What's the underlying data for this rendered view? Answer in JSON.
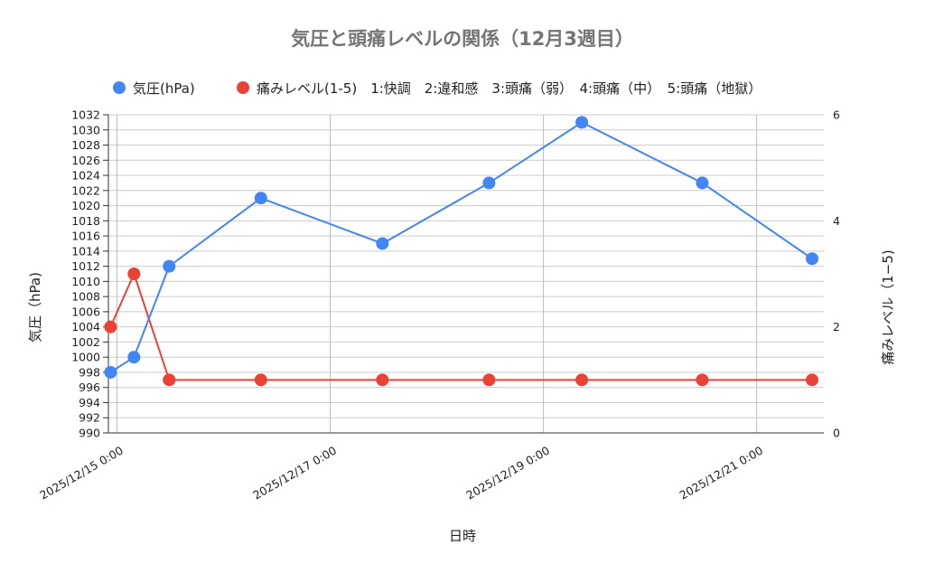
{
  "chart_data": {
    "type": "line",
    "title": "気圧と頭痛レベルの関係（12月3週目）",
    "xlabel": "日時",
    "ylabel_left": "気圧（hPa)",
    "ylabel_right": "痛みレベル（1−5)",
    "x_ticks": [
      "2025/12/15 0:00",
      "2025/12/17 0:00",
      "2025/12/19 0:00",
      "2025/12/21 0:00"
    ],
    "x_tick_days": [
      1,
      3,
      5,
      7
    ],
    "x_range_days": [
      0.92,
      7.63
    ],
    "y_left_range": [
      990,
      1032
    ],
    "y_left_ticks": [
      990,
      992,
      994,
      996,
      998,
      1000,
      1002,
      1004,
      1006,
      1008,
      1010,
      1012,
      1014,
      1016,
      1018,
      1020,
      1022,
      1024,
      1026,
      1028,
      1030,
      1032
    ],
    "y_right_range": [
      0,
      6
    ],
    "y_right_ticks": [
      0,
      2,
      4,
      6
    ],
    "legend_position": "top",
    "grid": true,
    "legend": [
      {
        "name": "気圧(hPa)",
        "color": "#4285f4"
      },
      {
        "name": "痛みレベル(1-5)　1:快調　2:違和感　3:頭痛（弱）　4:頭痛（中）　5:頭痛（地獄）",
        "color": "#ea4335"
      }
    ],
    "series": [
      {
        "name": "気圧(hPa)",
        "axis": "left",
        "color": "#4285f4",
        "x_days": [
          0.94,
          1.16,
          1.49,
          2.35,
          3.49,
          4.49,
          5.36,
          6.49,
          7.52
        ],
        "values": [
          998,
          1000,
          1012,
          1021,
          1015,
          1023,
          1031,
          1023,
          1013
        ]
      },
      {
        "name": "痛みレベル(1-5)",
        "axis": "right",
        "color": "#ea4335",
        "x_days": [
          0.94,
          1.16,
          1.49,
          2.35,
          3.49,
          4.49,
          5.36,
          6.49,
          7.52
        ],
        "values": [
          2,
          3,
          1,
          1,
          1,
          1,
          1,
          1,
          1
        ]
      }
    ]
  }
}
